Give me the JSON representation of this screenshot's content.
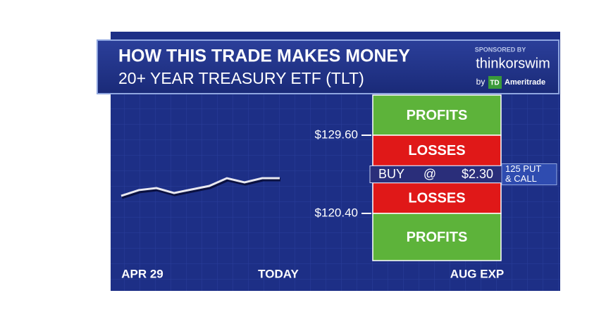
{
  "chart_data": {
    "type": "line",
    "title": "HOW THIS TRADE MAKES MONEY",
    "subtitle": "20+ YEAR TREASURY ETF (TLT)",
    "sponsor": {
      "label": "SPONSORED BY",
      "brand": "thinkorswim",
      "by": "by",
      "logo": "TD",
      "partner": "Ameritrade"
    },
    "x_labels": [
      "APR 29",
      "TODAY",
      "AUG EXP"
    ],
    "series": [
      {
        "name": "TLT",
        "color": "#e8e8f0",
        "values": [
          122.47,
          123.14,
          123.38,
          122.8,
          123.22,
          123.63,
          124.54,
          124.05,
          124.54,
          124.54
        ]
      }
    ],
    "ylim": [
      114.85,
      134.32
    ],
    "yticks": [
      {
        "value": 129.6,
        "label": "$129.60"
      },
      {
        "value": 120.4,
        "label": "$120.40"
      }
    ],
    "zones": [
      {
        "label": "PROFITS",
        "color": "#5db33a"
      },
      {
        "label": "LOSSES",
        "color": "#e01818"
      },
      {
        "label": "LOSSES",
        "color": "#e01818"
      },
      {
        "label": "PROFITS",
        "color": "#5db33a"
      }
    ],
    "trade": {
      "action": "BUY",
      "at": "@",
      "price": "$2.30",
      "note": [
        "125 PUT",
        "& CALL"
      ]
    }
  }
}
